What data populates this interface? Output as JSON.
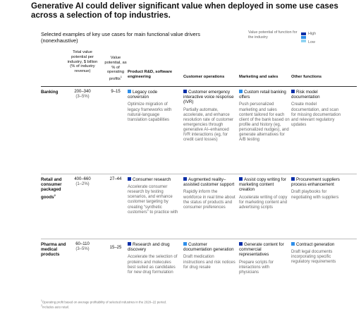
{
  "title": "Generative AI could deliver significant value when deployed in some use cases across a selection of top industries.",
  "subtitle": "Selected examples of key use cases for main functional value drivers (nonexhaustive)",
  "legend": {
    "label": "Value potential of function for the industry",
    "high": "High",
    "low": "Low",
    "colors": {
      "high": "#0a2fa8",
      "mid": "#2f8fea",
      "low": "#8fd3f3"
    }
  },
  "columns": {
    "total_value": "Total value potential per industry, $ billion (% of industry revenue)",
    "value_potential": "Value potential, as % of operating profits",
    "value_potential_sup": "1",
    "rd": "Product R&D, software engineering",
    "customer_ops": "Customer operations",
    "marketing": "Marketing and sales",
    "other": "Other functions"
  },
  "rows": [
    {
      "industry": "Banking",
      "total": "200–340",
      "total_pct": "(3–5%)",
      "op_pct": "9–15",
      "cells": [
        {
          "level": "mid",
          "title": "Legacy code conversion",
          "body": "Optimize migration of legacy frameworks with natural-language translation capabilities"
        },
        {
          "level": "high",
          "title": "Customer emergency interactive voice response (IVR)",
          "body": "Partially automate, accelerate, and enhance resolution rate of customer emergencies through generative AI–enhanced IVR interactions (eg, for credit card losses)"
        },
        {
          "level": "mid",
          "title": "Custom retail banking offers",
          "body": "Push personalized marketing and sales content tailored for each client of the bank based on profile and history (eg, personalized nudges), and generate alternatives for A/B testing"
        },
        {
          "level": "high",
          "title": "Risk model documentation",
          "body": "Create model documentation, and scan for missing documentation and relevant regulatory updates"
        }
      ]
    },
    {
      "industry": "Retail and consumer packaged goods",
      "industry_sup": "2",
      "total": "400–660",
      "total_pct": "(1–2%)",
      "op_pct": "27–44",
      "cells": [
        {
          "level": "high",
          "title": "Consumer research",
          "body": "Accelerate consumer research by testing scenarios, and enhance customer targeting by creating “synthetic customers” to practice with"
        },
        {
          "level": "high",
          "title": "Augmented reality–assisted customer support",
          "body": "Rapidly inform the workforce in real time about the status of products and consumer preferences"
        },
        {
          "level": "high",
          "title": "Assist copy writing for marketing content creation",
          "body": "Accelerate writing of copy for marketing content and advertising scripts"
        },
        {
          "level": "high",
          "title": "Procurement suppliers process enhancement",
          "body": "Draft playbooks for negotiating with suppliers"
        }
      ]
    },
    {
      "industry": "Pharma and medical products",
      "total": "60–110",
      "total_pct": "(3–5%)",
      "op_pct": "15–25",
      "cells": [
        {
          "level": "high",
          "title": "Research and drug discovery",
          "body": "Accelerate the selection of proteins and molecules best suited as candidates for new drug formulation"
        },
        {
          "level": "mid",
          "title": "Customer documentation generation",
          "body": "Draft medication instructions and risk notices for drug resale"
        },
        {
          "level": "high",
          "title": "Generate content for commercial representatives",
          "body": "Prepare scripts for interactions with physicians"
        },
        {
          "level": "mid",
          "title": "Contract generation",
          "body": "Draft legal documents incorporating specific regulatory requirements"
        }
      ]
    }
  ],
  "footnotes": [
    "Operating profit based on average profitability of selected industries in the 2020–22 period.",
    "Includes auto retail."
  ]
}
